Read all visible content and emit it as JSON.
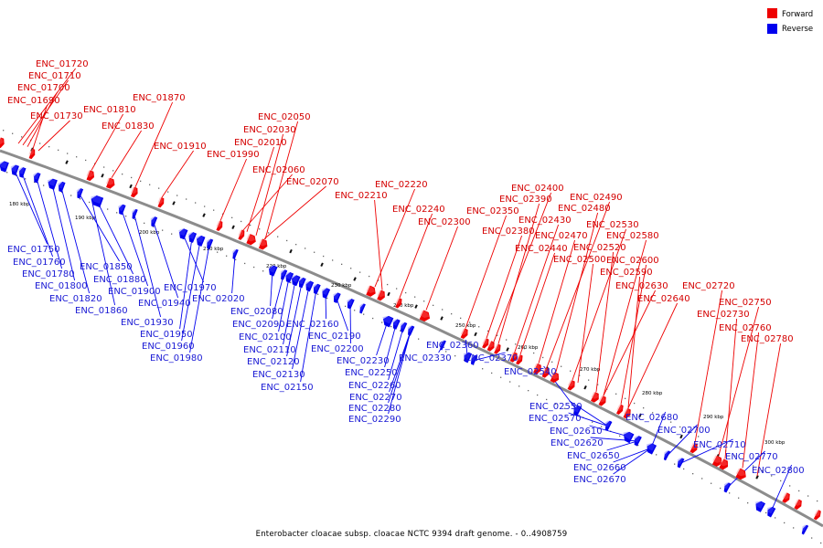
{
  "legend": {
    "items": [
      {
        "label": "Forward",
        "color": "#ee0000"
      },
      {
        "label": "Reverse",
        "color": "#0000ee"
      }
    ]
  },
  "caption": "Enterobacter cloacae subsp. cloacae NCTC 9394 draft genome. - 0..4908759",
  "colors": {
    "forward": "#ee0000",
    "reverse": "#0000ee",
    "backbone": "#8c8c8c"
  },
  "ticks": [
    "180 kbp",
    "190 kbp",
    "200 kbp",
    "210 kbp",
    "220 kbp",
    "230 kbp",
    "240 kbp",
    "250 kbp",
    "260 kbp",
    "270 kbp",
    "280 kbp",
    "290 kbp",
    "300 kbp"
  ],
  "forward_labels": [
    "ENC_01720",
    "ENC_01710",
    "ENC_01700",
    "ENC_01690",
    "ENC_01730",
    "ENC_01870",
    "ENC_01810",
    "ENC_01830",
    "ENC_02050",
    "ENC_02030",
    "ENC_02010",
    "ENC_01910",
    "ENC_01990",
    "ENC_02060",
    "ENC_02070",
    "ENC_02220",
    "ENC_02210",
    "ENC_02240",
    "ENC_02300",
    "ENC_02350",
    "ENC_02380",
    "ENC_02400",
    "ENC_02390",
    "ENC_02430",
    "ENC_02440",
    "ENC_02470",
    "ENC_02490",
    "ENC_02480",
    "ENC_02530",
    "ENC_02520",
    "ENC_02580",
    "ENC_02500",
    "ENC_02600",
    "ENC_02590",
    "ENC_02630",
    "ENC_02640",
    "ENC_02720",
    "ENC_02750",
    "ENC_02730",
    "ENC_02760",
    "ENC_02780"
  ],
  "reverse_labels": [
    "ENC_01750",
    "ENC_01760",
    "ENC_01780",
    "ENC_01800",
    "ENC_01820",
    "ENC_01850",
    "ENC_01880",
    "ENC_01860",
    "ENC_01900",
    "ENC_01930",
    "ENC_01940",
    "ENC_01970",
    "ENC_01950",
    "ENC_01960",
    "ENC_01980",
    "ENC_02020",
    "ENC_02080",
    "ENC_02090",
    "ENC_02100",
    "ENC_02110",
    "ENC_02120",
    "ENC_02130",
    "ENC_02150",
    "ENC_02160",
    "ENC_02190",
    "ENC_02200",
    "ENC_02230",
    "ENC_02250",
    "ENC_02260",
    "ENC_02270",
    "ENC_02280",
    "ENC_02290",
    "ENC_02330",
    "ENC_02360",
    "ENC_02370",
    "ENC_02540",
    "ENC_02550",
    "ENC_02570",
    "ENC_02610",
    "ENC_02620",
    "ENC_02650",
    "ENC_02660",
    "ENC_02670",
    "ENC_02680",
    "ENC_02700",
    "ENC_02710",
    "ENC_02770",
    "ENC_02800"
  ]
}
